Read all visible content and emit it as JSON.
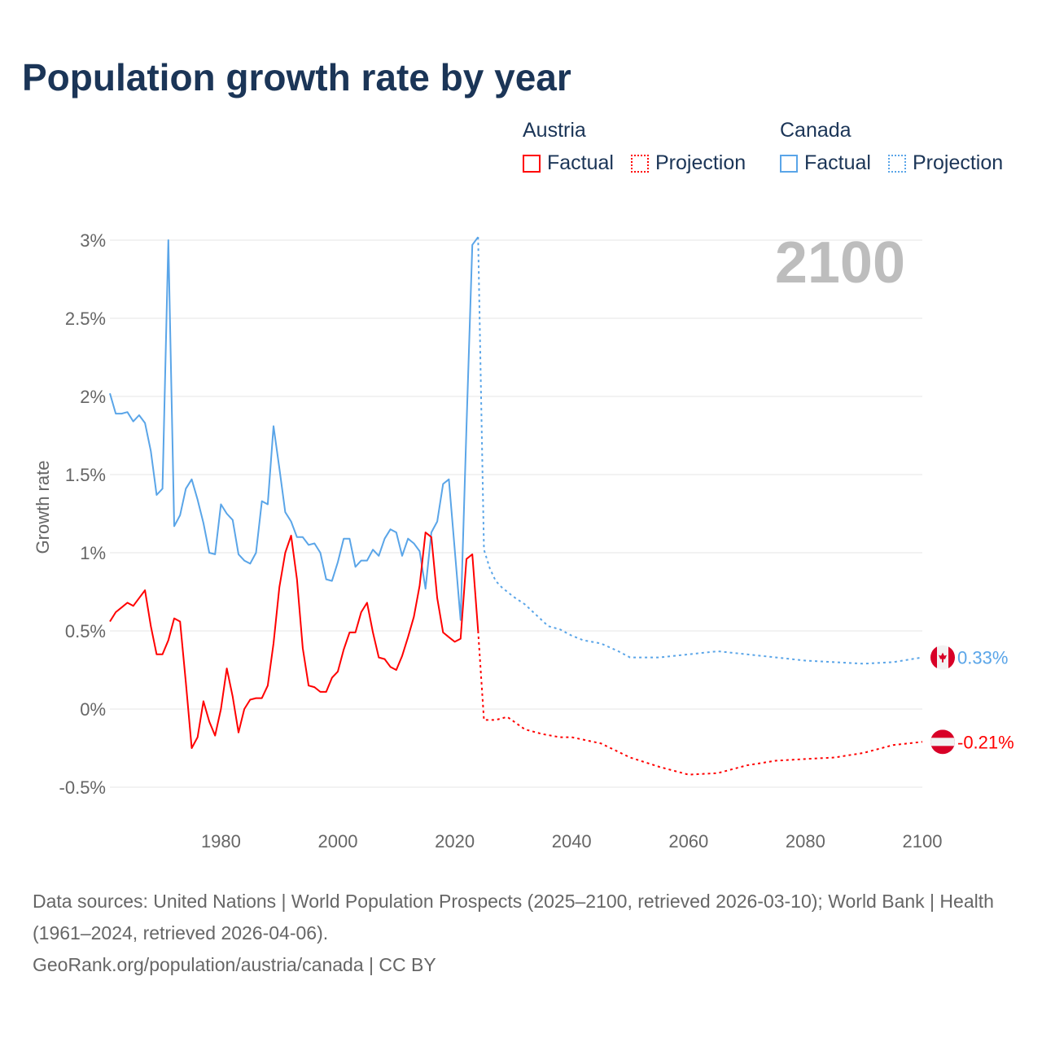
{
  "title": "Population growth rate by year",
  "legend": {
    "groups": [
      {
        "name": "Austria",
        "factual": "Factual",
        "projection": "Projection",
        "color": "#ff0000"
      },
      {
        "name": "Canada",
        "factual": "Factual",
        "projection": "Projection",
        "color": "#5aa5e8"
      }
    ]
  },
  "year_display": "2100",
  "sources": "Data sources: United Nations | World Population Prospects (2025–2100, retrieved 2026-03-10); World Bank | Health (1961–2024, retrieved 2026-04-06).",
  "credit": "GeoRank.org/population/austria/canada | CC BY",
  "chart_data": {
    "type": "line",
    "title": "Population growth rate by year",
    "xlabel": "",
    "ylabel": "Growth rate",
    "xlim": [
      1961,
      2100
    ],
    "ylim": [
      -0.5,
      3
    ],
    "xticks": [
      1980,
      2000,
      2020,
      2040,
      2060,
      2080,
      2100
    ],
    "xtick_labels": [
      "1980",
      "2000",
      "2020",
      "2040",
      "2060",
      "2080",
      "2100"
    ],
    "yticks": [
      -0.5,
      0,
      0.5,
      1,
      1.5,
      2,
      2.5,
      3
    ],
    "ytick_labels": [
      "-0.5%",
      "0%",
      "0.5%",
      "1%",
      "1.5%",
      "2%",
      "2.5%",
      "3%"
    ],
    "grid": true,
    "legend_position": "top-right",
    "series": [
      {
        "name": "Canada Factual",
        "color": "#5aa5e8",
        "dashed": false,
        "x": [
          1961,
          1962,
          1963,
          1964,
          1965,
          1966,
          1967,
          1968,
          1969,
          1970,
          1971,
          1972,
          1973,
          1974,
          1975,
          1976,
          1977,
          1978,
          1979,
          1980,
          1981,
          1982,
          1983,
          1984,
          1985,
          1986,
          1987,
          1988,
          1989,
          1990,
          1991,
          1992,
          1993,
          1994,
          1995,
          1996,
          1997,
          1998,
          1999,
          2000,
          2001,
          2002,
          2003,
          2004,
          2005,
          2006,
          2007,
          2008,
          2009,
          2010,
          2011,
          2012,
          2013,
          2014,
          2015,
          2016,
          2017,
          2018,
          2019,
          2020,
          2021,
          2022,
          2023,
          2024
        ],
        "y": [
          2.02,
          1.89,
          1.89,
          1.9,
          1.84,
          1.88,
          1.83,
          1.65,
          1.37,
          1.41,
          3.0,
          1.17,
          1.24,
          1.41,
          1.47,
          1.34,
          1.19,
          1.0,
          0.99,
          1.31,
          1.25,
          1.21,
          0.99,
          0.95,
          0.93,
          1.0,
          1.33,
          1.31,
          1.81,
          1.54,
          1.26,
          1.2,
          1.1,
          1.1,
          1.05,
          1.06,
          1.0,
          0.83,
          0.82,
          0.94,
          1.09,
          1.09,
          0.91,
          0.95,
          0.95,
          1.02,
          0.98,
          1.09,
          1.15,
          1.13,
          0.98,
          1.09,
          1.06,
          1.01,
          0.77,
          1.13,
          1.2,
          1.44,
          1.47,
          1.02,
          0.57,
          1.8,
          2.97,
          3.02
        ]
      },
      {
        "name": "Canada Projection",
        "color": "#5aa5e8",
        "dashed": true,
        "x": [
          2024,
          2025,
          2026,
          2027,
          2028,
          2029,
          2030,
          2032,
          2034,
          2036,
          2038,
          2040,
          2042,
          2045,
          2048,
          2050,
          2055,
          2060,
          2065,
          2070,
          2075,
          2080,
          2085,
          2090,
          2095,
          2100
        ],
        "y": [
          3.02,
          1.02,
          0.9,
          0.82,
          0.78,
          0.75,
          0.72,
          0.67,
          0.6,
          0.53,
          0.51,
          0.47,
          0.44,
          0.42,
          0.37,
          0.33,
          0.33,
          0.35,
          0.37,
          0.35,
          0.33,
          0.31,
          0.3,
          0.29,
          0.3,
          0.33
        ]
      },
      {
        "name": "Austria Factual",
        "color": "#ff0000",
        "dashed": false,
        "x": [
          1961,
          1962,
          1963,
          1964,
          1965,
          1966,
          1967,
          1968,
          1969,
          1970,
          1971,
          1972,
          1973,
          1974,
          1975,
          1976,
          1977,
          1978,
          1979,
          1980,
          1981,
          1982,
          1983,
          1984,
          1985,
          1986,
          1987,
          1988,
          1989,
          1990,
          1991,
          1992,
          1993,
          1994,
          1995,
          1996,
          1997,
          1998,
          1999,
          2000,
          2001,
          2002,
          2003,
          2004,
          2005,
          2006,
          2007,
          2008,
          2009,
          2010,
          2011,
          2012,
          2013,
          2014,
          2015,
          2016,
          2017,
          2018,
          2019,
          2020,
          2021,
          2022,
          2023,
          2024
        ],
        "y": [
          0.56,
          0.62,
          0.65,
          0.68,
          0.66,
          0.71,
          0.76,
          0.53,
          0.35,
          0.35,
          0.44,
          0.58,
          0.56,
          0.17,
          -0.25,
          -0.18,
          0.05,
          -0.08,
          -0.17,
          0.0,
          0.26,
          0.08,
          -0.15,
          0.0,
          0.06,
          0.07,
          0.07,
          0.15,
          0.42,
          0.78,
          1.0,
          1.11,
          0.83,
          0.39,
          0.15,
          0.14,
          0.11,
          0.11,
          0.2,
          0.24,
          0.38,
          0.49,
          0.49,
          0.62,
          0.68,
          0.49,
          0.33,
          0.32,
          0.27,
          0.25,
          0.34,
          0.46,
          0.59,
          0.79,
          1.13,
          1.1,
          0.71,
          0.49,
          0.46,
          0.43,
          0.45,
          0.96,
          0.99,
          0.5
        ]
      },
      {
        "name": "Austria Projection",
        "color": "#ff0000",
        "dashed": true,
        "x": [
          2024,
          2025,
          2027,
          2029,
          2032,
          2035,
          2038,
          2040,
          2045,
          2050,
          2055,
          2060,
          2065,
          2070,
          2075,
          2080,
          2085,
          2090,
          2095,
          2100
        ],
        "y": [
          0.5,
          -0.07,
          -0.07,
          -0.05,
          -0.13,
          -0.16,
          -0.18,
          -0.18,
          -0.22,
          -0.31,
          -0.37,
          -0.42,
          -0.41,
          -0.36,
          -0.33,
          -0.32,
          -0.31,
          -0.28,
          -0.23,
          -0.21
        ]
      }
    ],
    "end_labels": [
      {
        "country": "Canada",
        "value": 0.33,
        "label": "0.33%",
        "color": "#5aa5e8"
      },
      {
        "country": "Austria",
        "value": -0.21,
        "label": "-0.21%",
        "color": "#ff0000"
      }
    ]
  }
}
